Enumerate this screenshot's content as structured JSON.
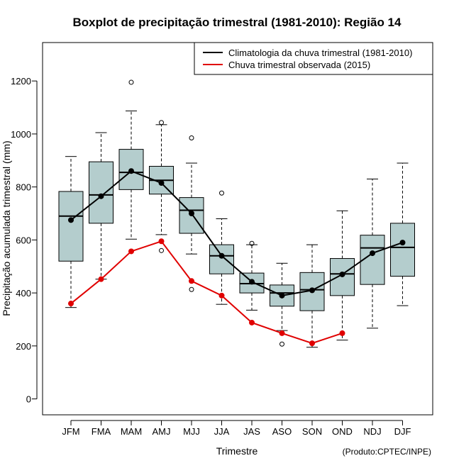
{
  "colors": {
    "box_fill": "#b4cdcd",
    "climatology": "#000000",
    "observed": "#e00000",
    "axis": "#000000"
  },
  "chart_data": {
    "type": "boxplot",
    "title": "Boxplot de precipitação trimestral (1981-2010): Região 14",
    "xlabel": "Trimestre",
    "ylabel": "Precipitação acumulada trimestral (mm)",
    "credit": "(Produto:CPTEC/INPE)",
    "ylim": [
      -60,
      1345
    ],
    "yticks": [
      0,
      200,
      400,
      600,
      800,
      1000,
      1200
    ],
    "ytick_labels": [
      "0",
      "200",
      "400",
      "600",
      "800",
      "1000",
      "1200"
    ],
    "categories": [
      "JFM",
      "FMA",
      "MAM",
      "AMJ",
      "MJJ",
      "JJA",
      "JAS",
      "ASO",
      "SON",
      "OND",
      "NDJ",
      "DJF"
    ],
    "boxes": [
      {
        "whisker_low": 345,
        "q1": 520,
        "median": 690,
        "q3": 783,
        "whisker_high": 915,
        "outliers": []
      },
      {
        "whisker_low": 452,
        "q1": 663,
        "median": 770,
        "q3": 895,
        "whisker_high": 1005,
        "outliers": []
      },
      {
        "whisker_low": 603,
        "q1": 790,
        "median": 855,
        "q3": 942,
        "whisker_high": 1087,
        "outliers": [
          1195
        ]
      },
      {
        "whisker_low": 620,
        "q1": 773,
        "median": 825,
        "q3": 878,
        "whisker_high": 1035,
        "outliers": [
          1043,
          560
        ]
      },
      {
        "whisker_low": 547,
        "q1": 625,
        "median": 712,
        "q3": 760,
        "whisker_high": 890,
        "outliers": [
          985,
          413
        ]
      },
      {
        "whisker_low": 357,
        "q1": 472,
        "median": 540,
        "q3": 582,
        "whisker_high": 680,
        "outliers": [
          777
        ]
      },
      {
        "whisker_low": 335,
        "q1": 400,
        "median": 435,
        "q3": 475,
        "whisker_high": 582,
        "outliers": [
          587
        ]
      },
      {
        "whisker_low": 258,
        "q1": 350,
        "median": 400,
        "q3": 430,
        "whisker_high": 512,
        "outliers": [
          207
        ]
      },
      {
        "whisker_low": 195,
        "q1": 333,
        "median": 412,
        "q3": 477,
        "whisker_high": 582,
        "outliers": []
      },
      {
        "whisker_low": 222,
        "q1": 390,
        "median": 472,
        "q3": 530,
        "whisker_high": 710,
        "outliers": []
      },
      {
        "whisker_low": 267,
        "q1": 432,
        "median": 570,
        "q3": 618,
        "whisker_high": 830,
        "outliers": []
      },
      {
        "whisker_low": 352,
        "q1": 463,
        "median": 572,
        "q3": 663,
        "whisker_high": 890,
        "outliers": []
      }
    ],
    "series": [
      {
        "name": "Climatologia da chuva trimestral (1981-2010)",
        "color": "#000000",
        "values": [
          675,
          765,
          860,
          815,
          700,
          540,
          442,
          390,
          410,
          470,
          550,
          590
        ]
      },
      {
        "name": "Chuva trimestral observada (2015)",
        "color": "#e00000",
        "values": [
          360,
          452,
          557,
          595,
          445,
          390,
          288,
          248,
          210,
          248
        ]
      }
    ],
    "legend_position": "top-right"
  }
}
